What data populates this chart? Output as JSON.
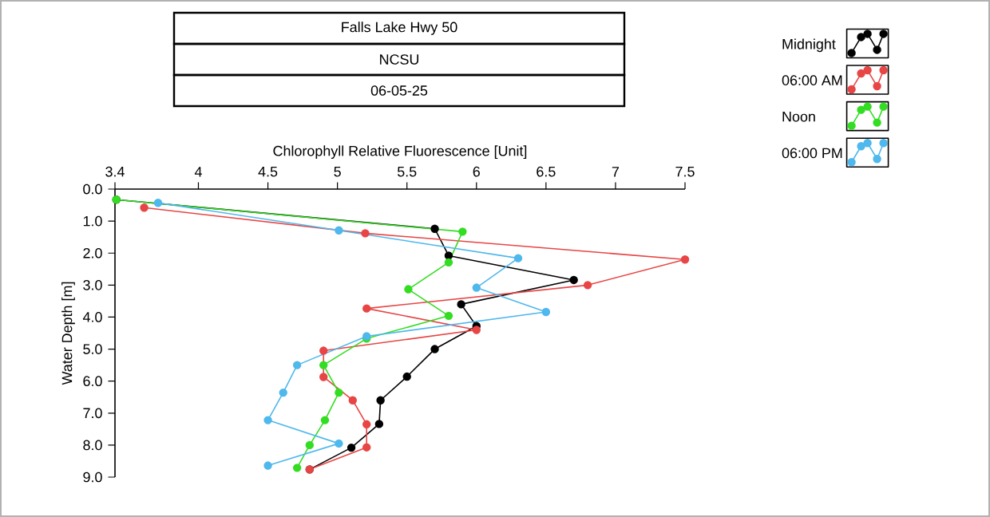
{
  "chart_data": {
    "type": "line",
    "title": "Falls Lake Hwy 50",
    "subtitle": "NCSU",
    "annotations": [
      "06-05-25"
    ],
    "xlabel": "Chlorophyll Relative Fluorescence [Unit]",
    "ylabel": "Water Depth [m]",
    "xlim": [
      3.4,
      7.5
    ],
    "xticks": [
      3.4,
      4,
      4.5,
      5,
      5.5,
      6,
      6.5,
      7,
      7.5
    ],
    "ylim": [
      9,
      0
    ],
    "yticks": [
      {
        "value": 0,
        "label": "0.0"
      },
      {
        "value": 1,
        "label": "1.0"
      },
      {
        "value": 2,
        "label": "2.0"
      },
      {
        "value": 3,
        "label": "3.0"
      },
      {
        "value": 4,
        "label": "4.0"
      },
      {
        "value": 5,
        "label": "5.0"
      },
      {
        "value": 6,
        "label": "6.0"
      },
      {
        "value": 7,
        "label": "7.0"
      },
      {
        "value": 8,
        "label": "8.0"
      },
      {
        "value": 9,
        "label": "9.0"
      }
    ],
    "marker": "circle",
    "legend": "right",
    "grid": false,
    "series": [
      {
        "name": "Midnight",
        "color": "#000000",
        "x": [
          3.41,
          5.7,
          5.8,
          6.7,
          5.89,
          6.0,
          5.7,
          5.5,
          5.31,
          5.3,
          5.1,
          4.8
        ],
        "values": [
          0.33,
          1.24,
          2.08,
          2.84,
          3.6,
          4.28,
          5.0,
          5.86,
          6.6,
          7.34,
          8.08,
          8.76
        ]
      },
      {
        "name": "06:00 AM",
        "color": "#e84545",
        "x": [
          3.61,
          5.2,
          7.5,
          6.8,
          5.21,
          6.0,
          4.9,
          4.9,
          5.11,
          5.21,
          5.21,
          4.8
        ],
        "values": [
          0.58,
          1.38,
          2.2,
          3.0,
          3.73,
          4.4,
          5.05,
          5.87,
          6.6,
          7.35,
          8.07,
          8.76
        ]
      },
      {
        "name": "Noon",
        "color": "#33dd22",
        "x": [
          3.41,
          5.9,
          5.8,
          5.51,
          5.8,
          5.21,
          4.9,
          5.01,
          4.91,
          4.8,
          4.71
        ],
        "values": [
          0.33,
          1.33,
          2.29,
          3.13,
          3.96,
          4.67,
          5.5,
          6.36,
          7.22,
          8.0,
          8.71
        ]
      },
      {
        "name": "06:00 PM",
        "color": "#4fb8ec",
        "x": [
          3.71,
          5.01,
          6.3,
          6.0,
          6.5,
          5.21,
          4.71,
          4.61,
          4.5,
          5.01,
          4.5
        ],
        "values": [
          0.43,
          1.29,
          2.16,
          3.08,
          3.84,
          4.6,
          5.5,
          6.36,
          7.22,
          7.95,
          8.64
        ]
      }
    ]
  }
}
